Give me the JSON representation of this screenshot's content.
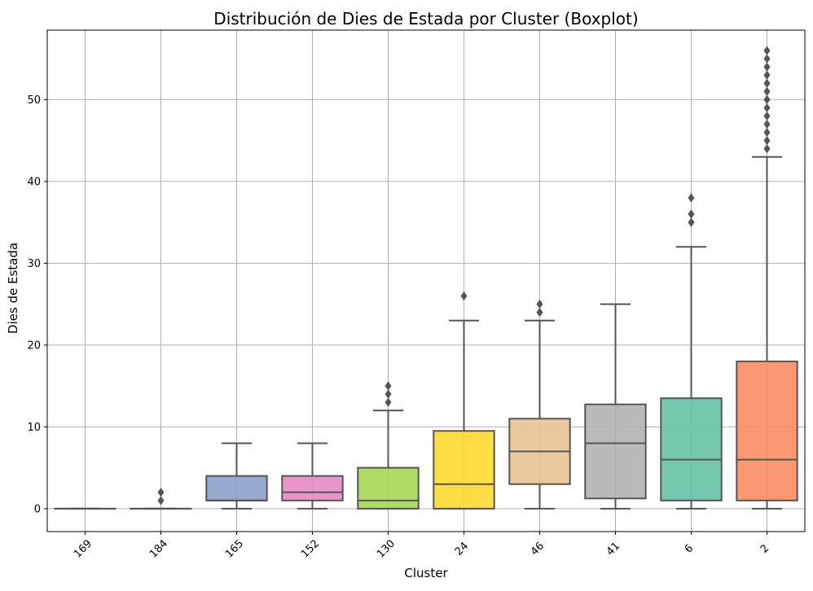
{
  "chart_data": {
    "type": "boxplot",
    "title": "Distribución de Dies de Estada por Cluster (Boxplot)",
    "xlabel": "Cluster",
    "ylabel": "Dies de Estada",
    "ylim": [
      -2.8,
      58.5
    ],
    "yticks": [
      0,
      10,
      20,
      30,
      40,
      50
    ],
    "grid": true,
    "legend": "none",
    "categories": [
      "169",
      "184",
      "165",
      "152",
      "130",
      "24",
      "46",
      "41",
      "6",
      "2"
    ],
    "colors": [
      "#66c2a5",
      "#fc8d62",
      "#8da0cb",
      "#e78ac3",
      "#a6d854",
      "#ffd92f",
      "#e5c494",
      "#b3b3b3",
      "#66c2a5",
      "#fc8d62"
    ],
    "boxes": [
      {
        "category": "169",
        "whisker_low": 0,
        "q1": 0,
        "median": 0,
        "q3": 0,
        "whisker_high": 0,
        "outliers": []
      },
      {
        "category": "184",
        "whisker_low": 0,
        "q1": 0,
        "median": 0,
        "q3": 0,
        "whisker_high": 0,
        "outliers": [
          1,
          2
        ]
      },
      {
        "category": "165",
        "whisker_low": 0,
        "q1": 1,
        "median": 1,
        "q3": 4,
        "whisker_high": 8,
        "outliers": []
      },
      {
        "category": "152",
        "whisker_low": 0,
        "q1": 1,
        "median": 2,
        "q3": 4,
        "whisker_high": 8,
        "outliers": []
      },
      {
        "category": "130",
        "whisker_low": 0,
        "q1": 0,
        "median": 1,
        "q3": 5,
        "whisker_high": 12,
        "outliers": [
          13,
          14,
          15
        ]
      },
      {
        "category": "24",
        "whisker_low": 0,
        "q1": 0,
        "median": 3,
        "q3": 9.5,
        "whisker_high": 23,
        "outliers": [
          26
        ]
      },
      {
        "category": "46",
        "whisker_low": 0,
        "q1": 3,
        "median": 7,
        "q3": 11,
        "whisker_high": 23,
        "outliers": [
          24,
          25
        ]
      },
      {
        "category": "41",
        "whisker_low": 0,
        "q1": 1.25,
        "median": 8,
        "q3": 12.75,
        "whisker_high": 25,
        "outliers": []
      },
      {
        "category": "6",
        "whisker_low": 0,
        "q1": 1,
        "median": 6,
        "q3": 13.5,
        "whisker_high": 32,
        "outliers": [
          35,
          36,
          38
        ]
      },
      {
        "category": "2",
        "whisker_low": 0,
        "q1": 1,
        "median": 6,
        "q3": 18,
        "whisker_high": 43,
        "outliers": [
          44,
          45,
          46,
          47,
          48,
          49,
          50,
          51,
          52,
          53,
          54,
          55,
          56
        ]
      }
    ]
  }
}
